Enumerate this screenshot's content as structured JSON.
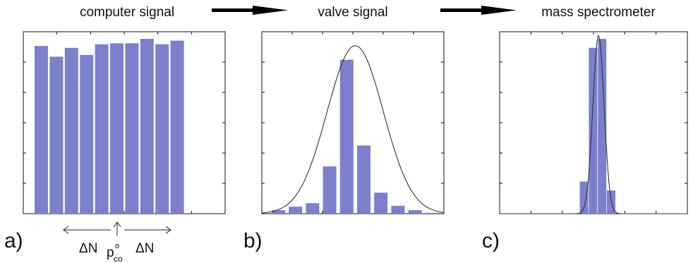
{
  "titles": {
    "a": "computer signal",
    "b": "valve signal",
    "c": "mass spectrometer"
  },
  "panel_labels": {
    "a": "a)",
    "b": "b)",
    "c": "c)"
  },
  "annotations": {
    "delta_left": "ΔN",
    "delta_right": "ΔN",
    "p_base": "p",
    "p_sub": "co",
    "p_sup": "o"
  },
  "chart_data": [
    {
      "panel": "a",
      "type": "bar",
      "title": "computer signal",
      "values": [
        0.94,
        0.88,
        0.93,
        0.89,
        0.95,
        0.955,
        0.955,
        0.98,
        0.95,
        0.97
      ],
      "ylim": [
        0,
        1.02
      ],
      "grid": false
    },
    {
      "panel": "b",
      "type": "bar",
      "title": "valve signal",
      "values": [
        0.02,
        0.04,
        0.06,
        0.27,
        0.88,
        0.39,
        0.12,
        0.045,
        0.02,
        0.005
      ],
      "curve": {
        "shape": "gaussian",
        "mean": 4.5,
        "sigma": 1.65,
        "peak": 0.96
      },
      "ylim": [
        0,
        1.04
      ],
      "grid": false
    },
    {
      "panel": "c",
      "type": "bar",
      "title": "mass spectrometer",
      "values": [
        0.0,
        0.0,
        0.18,
        0.93,
        0.98,
        0.13,
        0.0,
        0.0,
        0.0,
        0.0
      ],
      "curve": {
        "shape": "gaussian",
        "mean": 3.6,
        "sigma": 0.62,
        "peak": 1.0
      },
      "ylim": [
        0,
        1.02
      ],
      "grid": false
    }
  ],
  "colors": {
    "bar": "#7b7fcc",
    "curve": "#333333",
    "axis": "#111111"
  },
  "arrows": [
    "right-arrow",
    "right-arrow"
  ]
}
